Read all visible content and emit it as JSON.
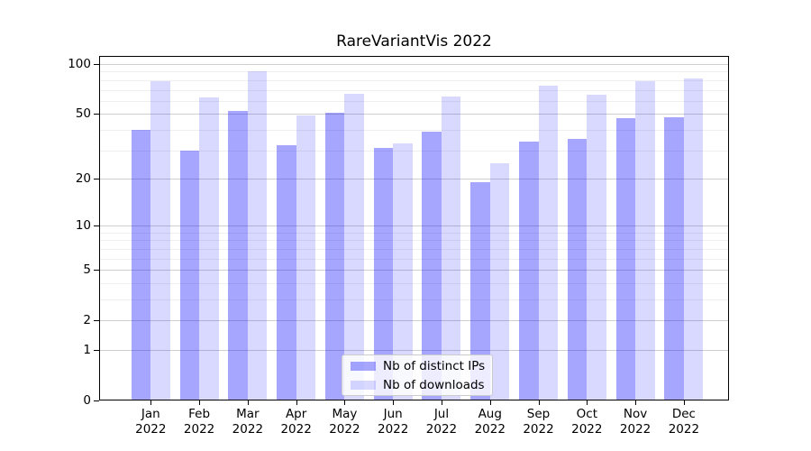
{
  "title": "RareVariantVis 2022",
  "chart_data": {
    "type": "bar",
    "title": "RareVariantVis 2022",
    "xlabel": "",
    "ylabel": "",
    "year": "2022",
    "categories": [
      "Jan",
      "Feb",
      "Mar",
      "Apr",
      "May",
      "Jun",
      "Jul",
      "Aug",
      "Sep",
      "Oct",
      "Nov",
      "Dec"
    ],
    "series": [
      {
        "name": "Nb of distinct IPs",
        "color": "rgba(0,0,255,0.35)",
        "values": [
          40,
          30,
          52,
          32,
          51,
          31,
          39,
          19,
          34,
          35,
          47,
          48
        ]
      },
      {
        "name": "Nb of downloads",
        "color": "rgba(0,0,255,0.15)",
        "values": [
          79,
          63,
          91,
          49,
          66,
          33,
          64,
          25,
          74,
          65,
          79,
          82
        ]
      }
    ],
    "y_axis": {
      "scale": "log1p",
      "max": 112,
      "major_ticks": [
        100,
        50,
        20,
        10,
        5,
        2,
        1,
        0
      ],
      "minor_gridlines": [
        90,
        80,
        70,
        60,
        40,
        30,
        9,
        8,
        7,
        6,
        4,
        3
      ]
    },
    "grid": "horizontal",
    "legend_position": "bottom-center"
  }
}
